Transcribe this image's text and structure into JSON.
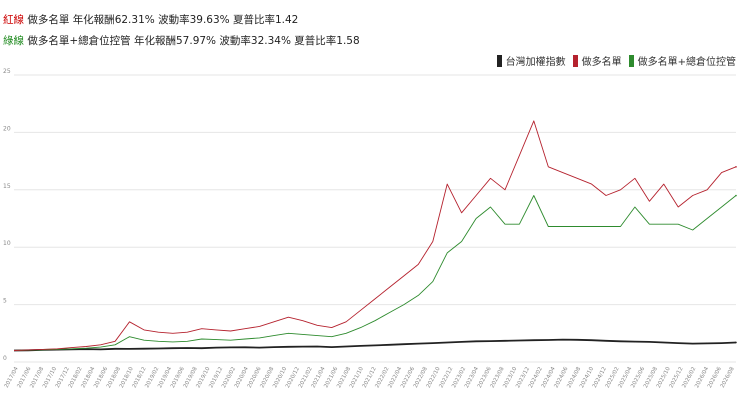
{
  "stats": {
    "red": {
      "tag": "紅線",
      "tag_color": "#cc0000",
      "strategy": "做多名單",
      "cagr_label": "年化報酬",
      "cagr": "62.31%",
      "vol_label": "波動率",
      "vol": "39.63%",
      "sharpe_label": "夏普比率",
      "sharpe": "1.42"
    },
    "green": {
      "tag": "綠線",
      "tag_color": "#1e8a1e",
      "strategy": "做多名單+總倉位控管",
      "cagr_label": "年化報酬",
      "cagr": "57.97%",
      "vol_label": "波動率",
      "vol": "32.34%",
      "sharpe_label": "夏普比率",
      "sharpe": "1.58"
    }
  },
  "chart_data": {
    "type": "line",
    "title": "",
    "xlabel": "",
    "ylabel": "",
    "ylim": [
      0,
      25
    ],
    "yticks": [
      0,
      5,
      10,
      15,
      20,
      25
    ],
    "grid": "horizontal",
    "legend_position": "top-right",
    "x_tick_labels": [
      "2017/04",
      "2017/06",
      "2017/08",
      "2017/10",
      "2017/12",
      "2018/02",
      "2018/04",
      "2018/06",
      "2018/08",
      "2018/10",
      "2018/12",
      "2019/02",
      "2019/04",
      "2019/06",
      "2019/08",
      "2019/10",
      "2019/12",
      "2020/02",
      "2020/04",
      "2020/06",
      "2020/08",
      "2020/10",
      "2020/12",
      "2021/02",
      "2021/04",
      "2021/06",
      "2021/08",
      "2021/10",
      "2021/12",
      "2022/02",
      "2022/04",
      "2022/06",
      "2022/08",
      "2022/10",
      "2022/12",
      "2023/02",
      "2023/04",
      "2023/06",
      "2023/08",
      "2023/10",
      "2023/12",
      "2024/02",
      "2024/04",
      "2024/06",
      "2024/08",
      "2024/10",
      "2024/12",
      "2025/02",
      "2025/04",
      "2025/06",
      "2025/08",
      "2025/10",
      "2025/12",
      "2026/02",
      "2026/04",
      "2026/06",
      "2026/08"
    ],
    "x": [
      0,
      2,
      4,
      6,
      8,
      10,
      12,
      14,
      16,
      18,
      20,
      22,
      24,
      26,
      28,
      30,
      32,
      34,
      36,
      38,
      40,
      42,
      44,
      46,
      48,
      50,
      52,
      54,
      56,
      58,
      60,
      62,
      64,
      66,
      68,
      70,
      72,
      74,
      76,
      78,
      80,
      82,
      84,
      86,
      88,
      90,
      92,
      94,
      96,
      98,
      100
    ],
    "series": [
      {
        "name": "台灣加權指數",
        "color": "#222222",
        "values": [
          1.0,
          1.02,
          1.05,
          1.08,
          1.1,
          1.12,
          1.1,
          1.15,
          1.14,
          1.16,
          1.18,
          1.2,
          1.22,
          1.2,
          1.25,
          1.27,
          1.28,
          1.25,
          1.3,
          1.32,
          1.34,
          1.35,
          1.3,
          1.35,
          1.4,
          1.45,
          1.5,
          1.55,
          1.6,
          1.65,
          1.7,
          1.75,
          1.8,
          1.82,
          1.85,
          1.87,
          1.9,
          1.92,
          1.95,
          1.93,
          1.9,
          1.85,
          1.8,
          1.78,
          1.75,
          1.7,
          1.65,
          1.6,
          1.62,
          1.65,
          1.7
        ]
      },
      {
        "name": "做多名單",
        "color": "#b5222e",
        "values": [
          1.0,
          1.05,
          1.1,
          1.15,
          1.25,
          1.35,
          1.5,
          1.8,
          3.5,
          2.8,
          2.6,
          2.5,
          2.6,
          2.9,
          2.8,
          2.7,
          2.9,
          3.1,
          3.5,
          3.9,
          3.6,
          3.2,
          3.0,
          3.5,
          4.5,
          5.5,
          6.5,
          7.5,
          8.5,
          10.5,
          15.5,
          13.0,
          14.5,
          16.0,
          15.0,
          18.0,
          21.0,
          17.0,
          16.5,
          16.0,
          15.5,
          14.5,
          15.0,
          16.0,
          14.0,
          15.5,
          13.5,
          14.5,
          15.0,
          16.5,
          17.0
        ]
      },
      {
        "name": "做多名單+總倉位控管",
        "color": "#2e8b2e",
        "values": [
          1.0,
          1.03,
          1.06,
          1.1,
          1.15,
          1.2,
          1.3,
          1.5,
          2.2,
          1.9,
          1.8,
          1.75,
          1.8,
          2.0,
          1.95,
          1.9,
          2.0,
          2.1,
          2.3,
          2.5,
          2.4,
          2.3,
          2.2,
          2.5,
          3.0,
          3.6,
          4.3,
          5.0,
          5.8,
          7.0,
          9.5,
          10.5,
          12.5,
          13.5,
          12.0,
          12.0,
          14.5,
          11.8,
          11.8,
          11.8,
          11.8,
          11.8,
          11.8,
          13.5,
          12.0,
          12.0,
          12.0,
          11.5,
          12.5,
          13.5,
          14.5
        ]
      }
    ]
  }
}
